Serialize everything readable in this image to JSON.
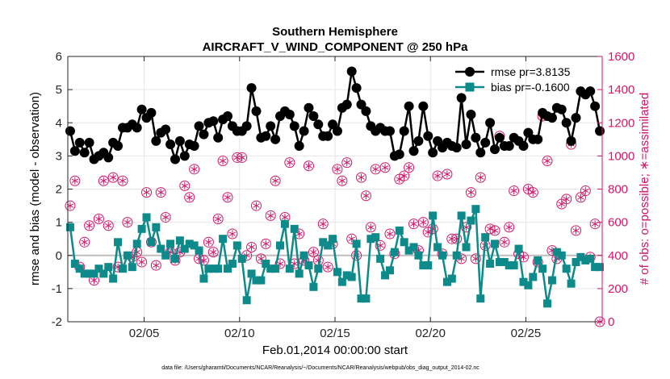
{
  "chart_data": {
    "type": "line",
    "title": "Southern Hemisphere",
    "subtitle": "AIRCRAFT_V_WIND_COMPONENT @ 250 hPa",
    "xlabel": "Feb.01,2014 00:00:00 start",
    "ylabel": "rmse and bias (model - observation)",
    "y2label": "# of obs: o=possible; ∗=assimilated",
    "footnote": "data file: /Users/gharamti/Documents/NCAR/Reanalysis/~/Documents/NCAR/Reanalysis/webpub/obs_diag_output_2014-02.nc",
    "xlim": [
      1.0,
      29.0
    ],
    "ylim": [
      -2,
      6
    ],
    "y2lim": [
      0,
      1600
    ],
    "xticks": [
      5,
      10,
      15,
      20,
      25
    ],
    "xticklabels": [
      "02/05",
      "02/10",
      "02/15",
      "02/20",
      "02/25"
    ],
    "yticks": [
      -2,
      -1,
      0,
      1,
      2,
      3,
      4,
      5,
      6
    ],
    "y2ticks": [
      0,
      200,
      400,
      600,
      800,
      1000,
      1200,
      1400,
      1600
    ],
    "grid": true,
    "legend_position": "top-right",
    "colors": {
      "rmse": "#000000",
      "bias": "#0f8a8a",
      "obs": "#d0176a",
      "zero": "#bdbdbd"
    },
    "series": [
      {
        "name": "rmse pr=3.8135",
        "axis": "left",
        "marker": "circle",
        "x": [
          1.125,
          1.375,
          1.625,
          1.875,
          2.125,
          2.375,
          2.625,
          2.875,
          3.125,
          3.375,
          3.625,
          3.875,
          4.125,
          4.375,
          4.625,
          4.875,
          5.125,
          5.375,
          5.625,
          5.875,
          6.125,
          6.375,
          6.625,
          6.875,
          7.125,
          7.375,
          7.625,
          7.875,
          8.125,
          8.375,
          8.625,
          8.875,
          9.125,
          9.375,
          9.625,
          9.875,
          10.125,
          10.375,
          10.625,
          10.875,
          11.125,
          11.375,
          11.625,
          11.875,
          12.125,
          12.375,
          12.625,
          12.875,
          13.125,
          13.375,
          13.625,
          13.875,
          14.125,
          14.375,
          14.625,
          14.875,
          15.125,
          15.375,
          15.625,
          15.875,
          16.125,
          16.375,
          16.625,
          16.875,
          17.125,
          17.375,
          17.625,
          17.875,
          18.125,
          18.375,
          18.625,
          18.875,
          19.125,
          19.375,
          19.625,
          19.875,
          20.125,
          20.375,
          20.625,
          20.875,
          21.125,
          21.375,
          21.625,
          21.875,
          22.125,
          22.375,
          22.625,
          22.875,
          23.125,
          23.375,
          23.625,
          23.875,
          24.125,
          24.375,
          24.625,
          24.875,
          25.125,
          25.375,
          25.625,
          25.875,
          26.125,
          26.375,
          26.625,
          26.875,
          27.125,
          27.375,
          27.625,
          27.875,
          28.125,
          28.375,
          28.625,
          28.875
        ],
        "values": [
          3.75,
          3.15,
          3.4,
          3.1,
          3.4,
          2.9,
          3.0,
          3.1,
          2.95,
          3.4,
          3.3,
          3.85,
          3.85,
          3.95,
          3.85,
          4.4,
          4.15,
          4.3,
          3.45,
          3.7,
          3.8,
          3.35,
          2.9,
          3.45,
          3.0,
          3.35,
          3.3,
          3.9,
          3.65,
          4.0,
          4.05,
          3.55,
          4.1,
          4.2,
          3.9,
          3.75,
          3.75,
          3.9,
          5.05,
          4.35,
          3.55,
          3.6,
          3.9,
          3.5,
          4.2,
          4.35,
          4.25,
          3.9,
          3.3,
          3.75,
          4.45,
          4.2,
          3.95,
          3.6,
          3.6,
          3.95,
          3.75,
          4.45,
          4.55,
          5.55,
          5.05,
          4.55,
          4.35,
          3.9,
          3.75,
          3.85,
          3.75,
          3.75,
          3.0,
          3.05,
          3.75,
          4.5,
          3.15,
          3.45,
          4.5,
          3.6,
          3.1,
          3.45,
          3.25,
          3.4,
          3.3,
          3.25,
          4.75,
          3.35,
          4.25,
          3.55,
          3.1,
          3.4,
          4.0,
          3.2,
          3.55,
          3.3,
          3.3,
          3.55,
          3.45,
          3.3,
          3.7,
          3.5,
          3.5,
          4.3,
          4.2,
          4.15,
          4.45,
          4.4,
          4.0,
          3.45,
          4.15,
          4.95,
          4.85,
          4.95,
          4.5,
          3.75
        ]
      },
      {
        "name": "bias pr=-0.1600",
        "axis": "left",
        "marker": "square",
        "x": [
          1.125,
          1.375,
          1.625,
          1.875,
          2.125,
          2.375,
          2.625,
          2.875,
          3.125,
          3.375,
          3.625,
          3.875,
          4.125,
          4.375,
          4.625,
          4.875,
          5.125,
          5.375,
          5.625,
          5.875,
          6.125,
          6.375,
          6.625,
          6.875,
          7.125,
          7.375,
          7.625,
          7.875,
          8.125,
          8.375,
          8.625,
          8.875,
          9.125,
          9.375,
          9.625,
          9.875,
          10.125,
          10.375,
          10.625,
          10.875,
          11.125,
          11.375,
          11.625,
          11.875,
          12.125,
          12.375,
          12.625,
          12.875,
          13.125,
          13.375,
          13.625,
          13.875,
          14.125,
          14.375,
          14.625,
          14.875,
          15.125,
          15.375,
          15.625,
          15.875,
          16.125,
          16.375,
          16.625,
          16.875,
          17.125,
          17.375,
          17.625,
          17.875,
          18.125,
          18.375,
          18.625,
          18.875,
          19.125,
          19.375,
          19.625,
          19.875,
          20.125,
          20.375,
          20.625,
          20.875,
          21.125,
          21.375,
          21.625,
          21.875,
          22.125,
          22.375,
          22.625,
          22.875,
          23.125,
          23.375,
          23.625,
          23.875,
          24.125,
          24.375,
          24.625,
          24.875,
          25.125,
          25.375,
          25.625,
          25.875,
          26.125,
          26.375,
          26.625,
          26.875,
          27.125,
          27.375,
          27.625,
          27.875,
          28.125,
          28.375,
          28.625,
          28.875
        ],
        "values": [
          0.85,
          -0.25,
          -0.4,
          -0.55,
          -0.55,
          -0.55,
          -0.4,
          -0.55,
          -0.35,
          -0.7,
          0.4,
          -0.4,
          0.0,
          -0.35,
          0.35,
          0.8,
          1.15,
          0.4,
          0.85,
          0.2,
          0.0,
          0.35,
          -0.1,
          0.45,
          0.2,
          0.35,
          0.3,
          0.15,
          -0.7,
          -0.4,
          -0.4,
          -0.4,
          0.5,
          -0.4,
          -0.25,
          0.3,
          -0.1,
          -1.35,
          -0.55,
          -0.75,
          -0.75,
          -0.25,
          -0.4,
          -0.4,
          0.3,
          0.95,
          -0.4,
          0.8,
          -0.55,
          0.0,
          -0.3,
          -0.95,
          -0.4,
          0.4,
          0.3,
          0.5,
          -0.5,
          -0.8,
          -0.6,
          -0.65,
          0.35,
          -1.3,
          -1.3,
          0.5,
          0.55,
          -0.1,
          -0.6,
          -0.45,
          0.1,
          0.75,
          0.4,
          0.15,
          0.25,
          0.0,
          -0.3,
          -0.3,
          1.2,
          0.25,
          0.0,
          -0.8,
          -0.7,
          0.0,
          1.2,
          0.25,
          1.05,
          1.4,
          -1.3,
          0.55,
          -0.25,
          0.35,
          -0.2,
          -0.2,
          -0.3,
          -0.3,
          0.2,
          -0.8,
          -0.9,
          -0.65,
          -0.15,
          -0.4,
          -1.45,
          -0.75,
          0.1,
          0.0,
          -0.4,
          -0.85,
          -0.2,
          -0.05,
          -0.15,
          -0.1,
          -0.35,
          -0.35
        ]
      },
      {
        "name": "# of obs possible",
        "axis": "right",
        "marker": "open-circle",
        "x": [
          1.125,
          1.375,
          1.625,
          1.875,
          2.125,
          2.375,
          2.625,
          2.875,
          3.125,
          3.375,
          3.625,
          3.875,
          4.125,
          4.375,
          4.625,
          4.875,
          5.125,
          5.375,
          5.625,
          5.875,
          6.125,
          6.375,
          6.625,
          6.875,
          7.125,
          7.375,
          7.625,
          7.875,
          8.125,
          8.375,
          8.625,
          8.875,
          9.125,
          9.375,
          9.625,
          9.875,
          10.125,
          10.375,
          10.625,
          10.875,
          11.125,
          11.375,
          11.625,
          11.875,
          12.125,
          12.375,
          12.625,
          12.875,
          13.125,
          13.375,
          13.625,
          13.875,
          14.125,
          14.375,
          14.625,
          14.875,
          15.125,
          15.375,
          15.625,
          15.875,
          16.125,
          16.375,
          16.625,
          16.875,
          17.125,
          17.375,
          17.625,
          17.875,
          18.125,
          18.375,
          18.625,
          18.875,
          19.125,
          19.375,
          19.625,
          19.875,
          20.125,
          20.375,
          20.625,
          20.875,
          21.125,
          21.375,
          21.625,
          21.875,
          22.125,
          22.375,
          22.625,
          22.875,
          23.125,
          23.375,
          23.625,
          23.875,
          24.125,
          24.375,
          24.625,
          24.875,
          25.125,
          25.375,
          25.625,
          25.875,
          26.125,
          26.375,
          26.625,
          26.875,
          27.125,
          27.375,
          27.625,
          27.875,
          28.125,
          28.375,
          28.625,
          28.875
        ],
        "values": [
          700,
          850,
          330,
          480,
          580,
          250,
          620,
          850,
          580,
          870,
          330,
          850,
          600,
          390,
          420,
          360,
          780,
          480,
          340,
          780,
          630,
          420,
          370,
          420,
          820,
          750,
          920,
          380,
          370,
          480,
          420,
          620,
          970,
          750,
          530,
          990,
          990,
          400,
          450,
          700,
          380,
          470,
          640,
          850,
          350,
          630,
          960,
          350,
          530,
          370,
          940,
          420,
          370,
          590,
          330,
          470,
          920,
          850,
          960,
          500,
          400,
          870,
          760,
          570,
          920,
          460,
          930,
          530,
          410,
          860,
          880,
          930,
          590,
          430,
          600,
          540,
          560,
          880,
          410,
          890,
          500,
          500,
          380,
          570,
          780,
          380,
          870,
          460,
          560,
          550,
          1120,
          480,
          570,
          790,
          410,
          390,
          800,
          780,
          360,
          1240,
          970,
          430,
          380,
          710,
          740,
          1070,
          550,
          750,
          790,
          390,
          590,
          0
        ]
      },
      {
        "name": "# of obs assimilated",
        "axis": "right",
        "marker": "asterisk",
        "x": [
          1.125,
          1.375,
          1.625,
          1.875,
          2.125,
          2.375,
          2.625,
          2.875,
          3.125,
          3.375,
          3.625,
          3.875,
          4.125,
          4.375,
          4.625,
          4.875,
          5.125,
          5.375,
          5.625,
          5.875,
          6.125,
          6.375,
          6.625,
          6.875,
          7.125,
          7.375,
          7.625,
          7.875,
          8.125,
          8.375,
          8.625,
          8.875,
          9.125,
          9.375,
          9.625,
          9.875,
          10.125,
          10.375,
          10.625,
          10.875,
          11.125,
          11.375,
          11.625,
          11.875,
          12.125,
          12.375,
          12.625,
          12.875,
          13.125,
          13.375,
          13.625,
          13.875,
          14.125,
          14.375,
          14.625,
          14.875,
          15.125,
          15.375,
          15.625,
          15.875,
          16.125,
          16.375,
          16.625,
          16.875,
          17.125,
          17.375,
          17.625,
          17.875,
          18.125,
          18.375,
          18.625,
          18.875,
          19.125,
          19.375,
          19.625,
          19.875,
          20.125,
          20.375,
          20.625,
          20.875,
          21.125,
          21.375,
          21.625,
          21.875,
          22.125,
          22.375,
          22.625,
          22.875,
          23.125,
          23.375,
          23.625,
          23.875,
          24.125,
          24.375,
          24.625,
          24.875,
          25.125,
          25.375,
          25.625,
          25.875,
          26.125,
          26.375,
          26.625,
          26.875,
          27.125,
          27.375,
          27.625,
          27.875,
          28.125,
          28.375,
          28.625,
          28.875
        ],
        "values": [
          700,
          850,
          330,
          480,
          580,
          250,
          620,
          850,
          580,
          870,
          330,
          850,
          600,
          390,
          420,
          360,
          780,
          480,
          340,
          780,
          630,
          420,
          370,
          420,
          820,
          750,
          920,
          380,
          370,
          480,
          420,
          620,
          970,
          750,
          530,
          990,
          990,
          400,
          450,
          700,
          380,
          470,
          640,
          850,
          350,
          630,
          960,
          350,
          530,
          370,
          940,
          420,
          370,
          590,
          330,
          470,
          920,
          850,
          960,
          500,
          400,
          870,
          760,
          570,
          920,
          460,
          930,
          530,
          410,
          860,
          880,
          930,
          590,
          430,
          600,
          540,
          560,
          880,
          410,
          890,
          500,
          500,
          380,
          570,
          780,
          380,
          870,
          460,
          560,
          550,
          1120,
          480,
          570,
          790,
          410,
          390,
          800,
          780,
          360,
          1240,
          970,
          430,
          380,
          710,
          740,
          1070,
          550,
          750,
          790,
          390,
          590,
          0
        ]
      }
    ]
  }
}
